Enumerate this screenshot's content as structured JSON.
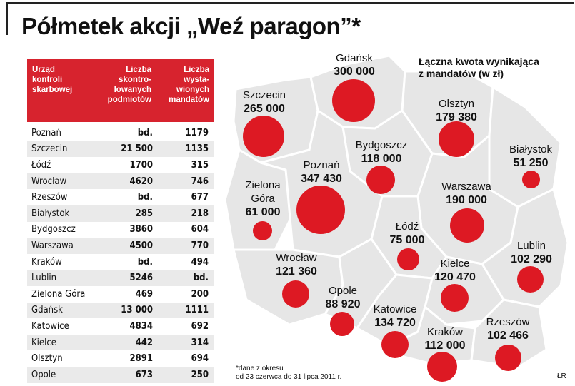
{
  "title": "Półmetek akcji „Weź paragon”*",
  "table": {
    "headers": {
      "office": "Urząd\nkontroli\nskarbowej",
      "entities": "Liczba\nskontro-\nlowanych\npodmiotów",
      "fines": "Liczba\nwysta-\nwionych\nmandatów"
    },
    "rows": [
      {
        "city": "Poznań",
        "entities": "bd.",
        "fines": "1179"
      },
      {
        "city": "Szczecin",
        "entities": "21 500",
        "fines": "1135"
      },
      {
        "city": "Łódź",
        "entities": "1700",
        "fines": "315"
      },
      {
        "city": "Wrocław",
        "entities": "4620",
        "fines": "746"
      },
      {
        "city": "Rzeszów",
        "entities": "bd.",
        "fines": "677"
      },
      {
        "city": "Białystok",
        "entities": "285",
        "fines": "218"
      },
      {
        "city": "Bydgoszcz",
        "entities": "3860",
        "fines": "604"
      },
      {
        "city": "Warszawa",
        "entities": "4500",
        "fines": "770"
      },
      {
        "city": "Kraków",
        "entities": "bd.",
        "fines": "494"
      },
      {
        "city": "Lublin",
        "entities": "5246",
        "fines": "bd."
      },
      {
        "city": "Zielona Góra",
        "entities": "469",
        "fines": "200"
      },
      {
        "city": "Gdańsk",
        "entities": "13 000",
        "fines": "1111"
      },
      {
        "city": "Katowice",
        "entities": "4834",
        "fines": "692"
      },
      {
        "city": "Kielce",
        "entities": "442",
        "fines": "314"
      },
      {
        "city": "Olsztyn",
        "entities": "2891",
        "fines": "694"
      },
      {
        "city": "Opole",
        "entities": "673",
        "fines": "250"
      }
    ]
  },
  "map": {
    "legend": "Łączna kwota wynikająca\nz mandatów (w zł)",
    "dot_color": "#dd1923",
    "region_color": "#e6e6e6",
    "cities": [
      {
        "id": "gdansk",
        "name": "Gdańsk",
        "value": "300 000"
      },
      {
        "id": "szczecin",
        "name": "Szczecin",
        "value": "265 000"
      },
      {
        "id": "olsztyn",
        "name": "Olsztyn",
        "value": "179 380"
      },
      {
        "id": "bydgoszcz",
        "name": "Bydgoszcz",
        "value": "118 000"
      },
      {
        "id": "bialystok",
        "name": "Białystok",
        "value": "51 250"
      },
      {
        "id": "poznan",
        "name": "Poznań",
        "value": "347 430"
      },
      {
        "id": "zielona",
        "name": "Zielona\nGóra",
        "value": "61 000"
      },
      {
        "id": "warszawa",
        "name": "Warszawa",
        "value": "190 000"
      },
      {
        "id": "lodz",
        "name": "Łódź",
        "value": "75 000"
      },
      {
        "id": "lublin",
        "name": "Lublin",
        "value": "102 290"
      },
      {
        "id": "wroclaw",
        "name": "Wrocław",
        "value": "121 360"
      },
      {
        "id": "kielce",
        "name": "Kielce",
        "value": "120 470"
      },
      {
        "id": "opole",
        "name": "Opole",
        "value": "88 920"
      },
      {
        "id": "katowice",
        "name": "Katowice",
        "value": "134 720"
      },
      {
        "id": "rzeszow",
        "name": "Rzeszów",
        "value": "102 466"
      },
      {
        "id": "krakow",
        "name": "Kraków",
        "value": "112 000"
      }
    ]
  },
  "footnote": "*dane z okresu\nod 23 czerwca do 31 lipca 2011 r.",
  "credit": "ŁR"
}
